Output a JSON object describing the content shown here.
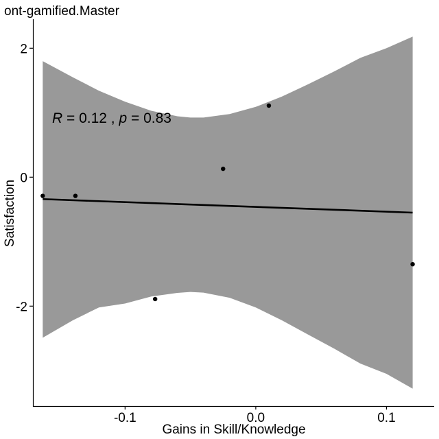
{
  "chart_data": {
    "type": "scatter",
    "title": "ont-gamified.Master",
    "xlabel": "Gains in Skill/Knowledge",
    "ylabel": "Satisfaction",
    "xlim": [
      -0.1705,
      0.1365
    ],
    "ylim": [
      -3.55,
      2.45
    ],
    "x_ticks": [
      -0.1,
      0.0,
      0.1
    ],
    "x_tick_labels": [
      "-0.1",
      "0.0",
      "0.1"
    ],
    "y_ticks": [
      -2,
      0,
      2
    ],
    "y_tick_labels": [
      "-2",
      "0",
      "2"
    ],
    "grid": false,
    "points": [
      {
        "x": -0.163,
        "y": -0.29
      },
      {
        "x": -0.138,
        "y": -0.29
      },
      {
        "x": -0.077,
        "y": -1.89
      },
      {
        "x": -0.025,
        "y": 0.13
      },
      {
        "x": 0.01,
        "y": 1.11
      },
      {
        "x": 0.12,
        "y": -1.35
      }
    ],
    "fit_line": {
      "x": [
        -0.163,
        0.12
      ],
      "y": [
        -0.34,
        -0.55
      ]
    },
    "confidence_band": {
      "x": [
        -0.163,
        -0.14,
        -0.12,
        -0.1,
        -0.08,
        -0.06,
        -0.05,
        -0.04,
        -0.02,
        0.0,
        0.02,
        0.04,
        0.06,
        0.08,
        0.1,
        0.12
      ],
      "upper": [
        1.8,
        1.55,
        1.34,
        1.17,
        1.03,
        0.945,
        0.925,
        0.925,
        0.98,
        1.09,
        1.25,
        1.44,
        1.64,
        1.85,
        2.0,
        2.18
      ],
      "lower": [
        -2.49,
        -2.22,
        -2.02,
        -1.96,
        -1.85,
        -1.795,
        -1.78,
        -1.79,
        -1.87,
        -2.02,
        -2.22,
        -2.44,
        -2.66,
        -2.89,
        -3.05,
        -3.28
      ]
    },
    "band_color": "#999999",
    "line_color": "#000000",
    "point_color": "#000000"
  },
  "annotation": {
    "r_symbol": "R",
    "r_text": " = 0.12 , ",
    "p_symbol": "p",
    "p_text": " = 0.83"
  }
}
